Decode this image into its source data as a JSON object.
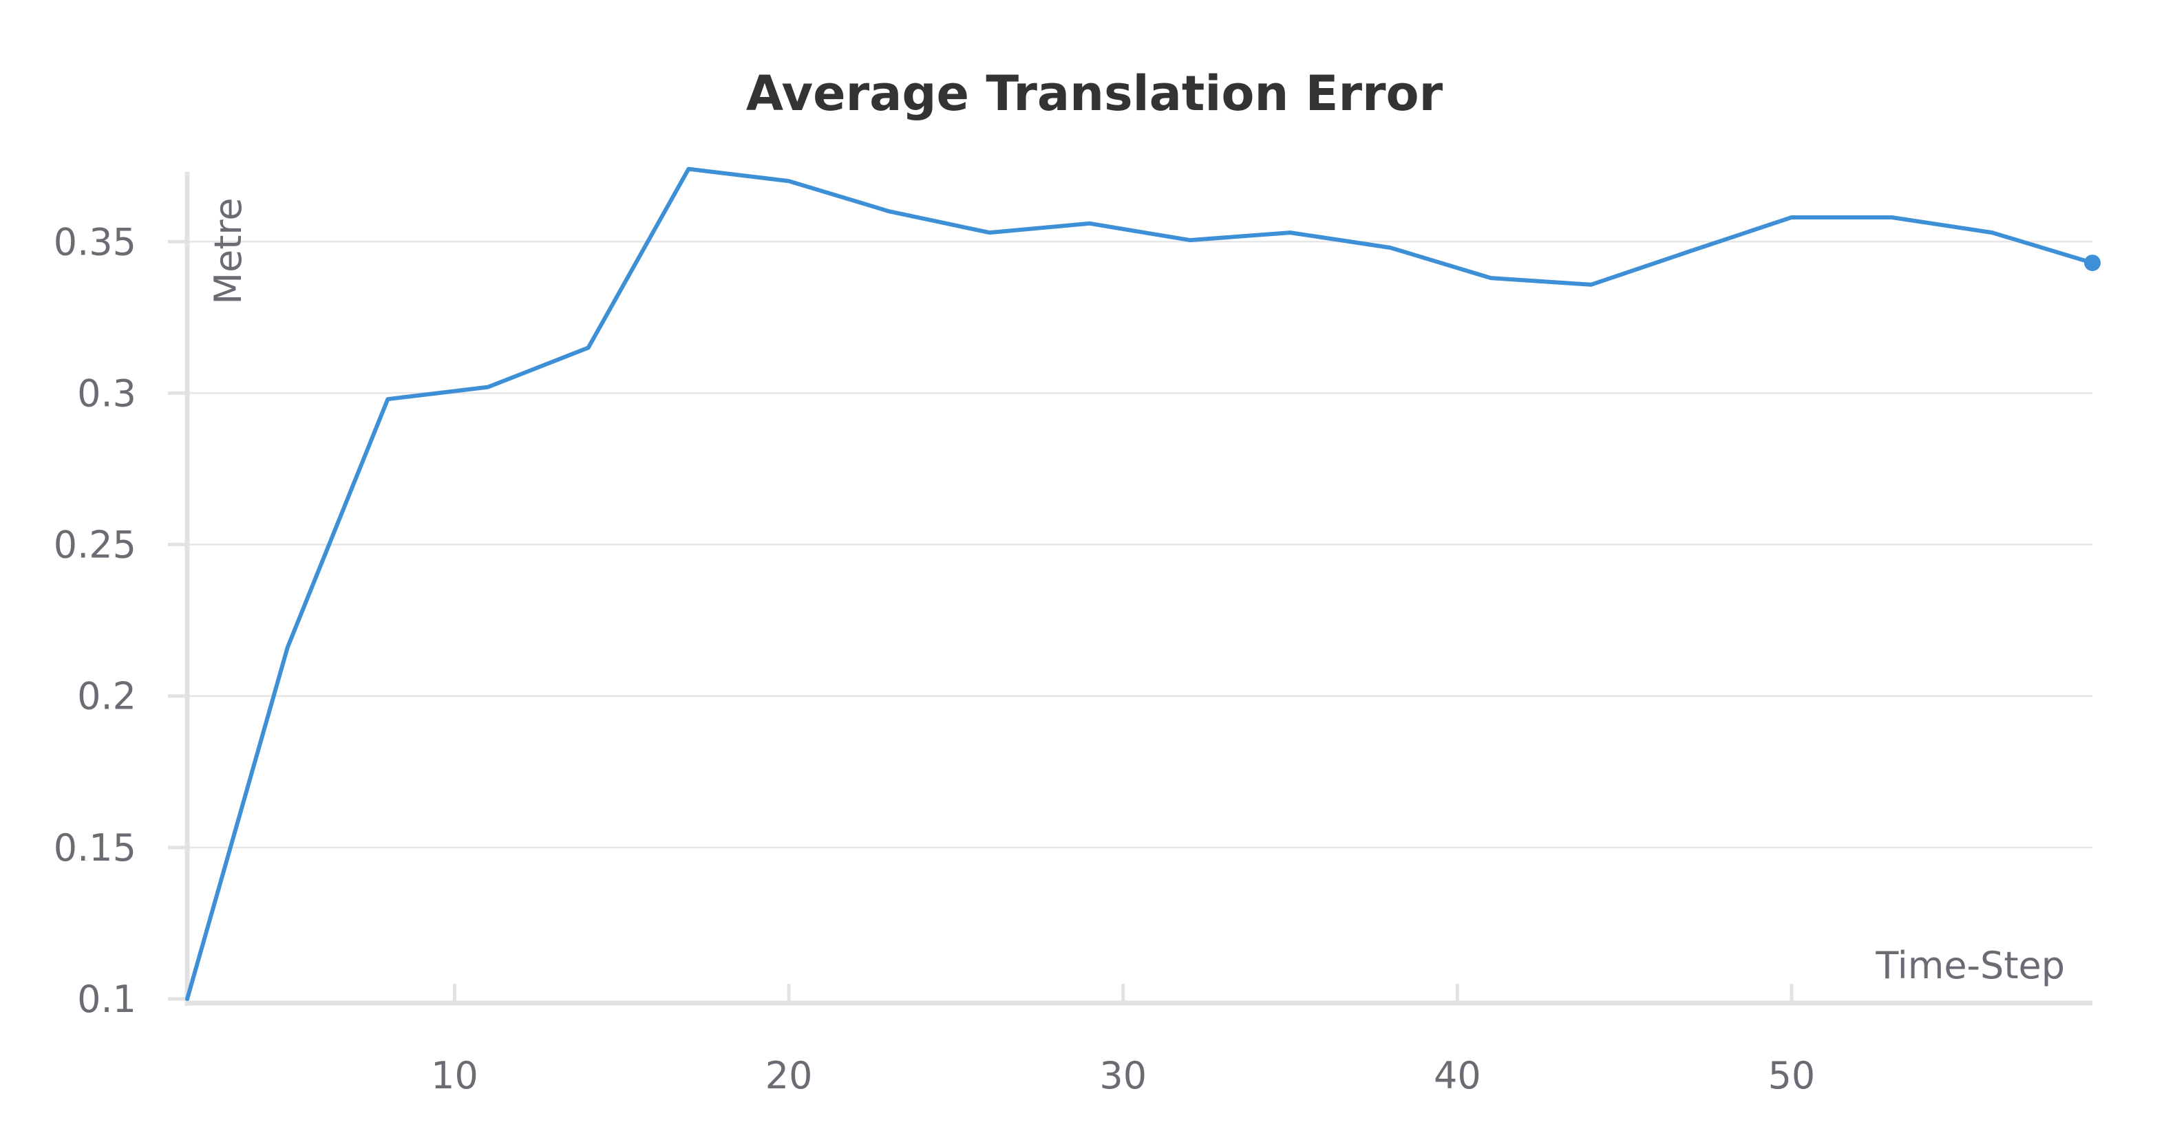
{
  "chart_data": {
    "type": "line",
    "title": "Average Translation Error",
    "xlabel": "Time-Step",
    "ylabel": "Metre",
    "xlim": [
      2,
      59
    ],
    "ylim": [
      0.1,
      0.373
    ],
    "xticks": [
      10,
      20,
      30,
      40,
      50
    ],
    "yticks": [
      0.1,
      0.15,
      0.2,
      0.25,
      0.3,
      0.35
    ],
    "ytick_labels": [
      "0.1",
      "0.15",
      "0.2",
      "0.25",
      "0.3",
      "0.35"
    ],
    "grid": true,
    "series": [
      {
        "x": [
          2,
          5,
          8,
          11,
          14,
          17,
          20,
          23,
          26,
          29,
          32,
          35,
          38,
          41,
          44,
          47,
          50,
          53,
          56,
          59
        ],
        "y": [
          0.1,
          0.216,
          0.298,
          0.302,
          0.315,
          0.374,
          0.37,
          0.36,
          0.353,
          0.356,
          0.3505,
          0.353,
          0.348,
          0.338,
          0.3358,
          0.347,
          0.358,
          0.358,
          0.353,
          0.343
        ],
        "color": "#3d8fd6"
      }
    ]
  }
}
